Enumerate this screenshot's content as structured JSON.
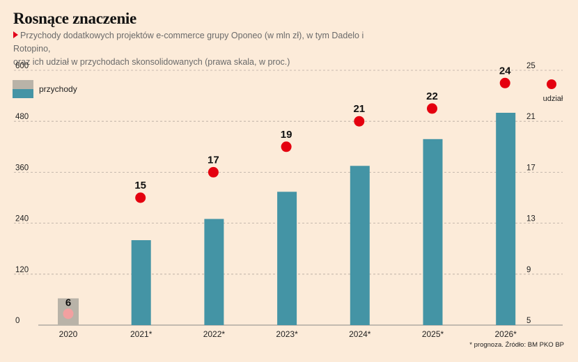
{
  "title": "Rosnące znaczenie",
  "subtitle_line1": "Przychody dodatkowych projektów e-commerce grupy Oponeo (w mln zł), w tym Dadelo i Rotopino,",
  "subtitle_line2": "oraz ich udział w przychodach skonsolidowanych (prawa skala, w proc.)",
  "footnote": "* prognoza. Źródło: BM PKO BP",
  "colors": {
    "bar": "#4494a5",
    "bar_first": "#b9b3a8",
    "dot": "#e4000f",
    "dot_first": "#f2a0a0",
    "grid": "#b5aaa0",
    "background": "#fcebd9"
  },
  "chart_data": {
    "type": "bar",
    "categories": [
      "2020",
      "2021*",
      "2022*",
      "2023*",
      "2024*",
      "2025*",
      "2026*"
    ],
    "series": [
      {
        "name": "przychody",
        "axis": "left",
        "render": "bar",
        "values": [
          63,
          200,
          250,
          314,
          375,
          438,
          500
        ]
      },
      {
        "name": "udział",
        "axis": "right",
        "render": "dot",
        "values": [
          6,
          15,
          17,
          19,
          21,
          22,
          24
        ],
        "labels": [
          "6",
          "15",
          "17",
          "19",
          "21",
          "22",
          "24"
        ]
      }
    ],
    "left_axis": {
      "ylim": [
        0,
        600
      ],
      "ticks": [
        "0",
        "120",
        "240",
        "360",
        "480",
        "600"
      ]
    },
    "right_axis": {
      "ylim": [
        5,
        25
      ],
      "ticks": [
        "5",
        "9",
        "13",
        "17",
        "21",
        "25"
      ]
    },
    "grid": true,
    "legend": {
      "position": "top-left",
      "entries": [
        "przychody"
      ]
    },
    "right_legend": {
      "position": "top-right",
      "entries": [
        "udział"
      ]
    }
  }
}
